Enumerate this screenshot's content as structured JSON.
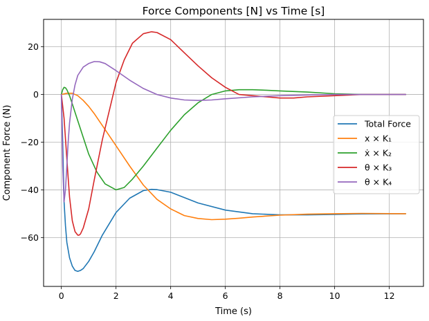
{
  "chart_data": {
    "type": "line",
    "title": "Force Components [N] vs Time [s]",
    "xlabel": "Time (s)",
    "ylabel": "Component Force (N)",
    "xlim": [
      -0.65,
      13.25
    ],
    "ylim": [
      -80.5,
      31.5
    ],
    "xticks": [
      0,
      2,
      4,
      6,
      8,
      10,
      12
    ],
    "yticks": [
      -60,
      -40,
      -20,
      0,
      20
    ],
    "xtick_labels": [
      "0",
      "2",
      "4",
      "6",
      "8",
      "10",
      "12"
    ],
    "ytick_labels": [
      "−60",
      "−40",
      "−20",
      "0",
      "20"
    ],
    "grid": true,
    "legend_position": "center-right",
    "series": [
      {
        "name": "Total Force",
        "color": "#1f77b4",
        "x": [
          0,
          0.05,
          0.1,
          0.15,
          0.2,
          0.3,
          0.4,
          0.5,
          0.6,
          0.7,
          0.8,
          1.0,
          1.2,
          1.5,
          2.0,
          2.5,
          3.0,
          3.3,
          3.5,
          4.0,
          5.0,
          6.0,
          7.0,
          8.0,
          9.0,
          10.0,
          11.0,
          12.6
        ],
        "y": [
          0,
          -20,
          -45,
          -55,
          -62,
          -68.5,
          -72,
          -73.8,
          -74.2,
          -73.8,
          -73,
          -70,
          -66,
          -59,
          -49.5,
          -43.5,
          -40.3,
          -39.8,
          -39.9,
          -41,
          -45.5,
          -48.5,
          -50,
          -50.5,
          -50.5,
          -50.3,
          -50.1,
          -50
        ]
      },
      {
        "name": "x × K₁",
        "color": "#ff7f0e",
        "x": [
          0,
          0.2,
          0.4,
          0.6,
          0.8,
          1.0,
          1.2,
          1.5,
          2.0,
          2.5,
          3.0,
          3.5,
          4.0,
          4.5,
          5.0,
          5.5,
          6.0,
          6.5,
          7.0,
          8.0,
          9.0,
          10.0,
          11.0,
          12.6
        ],
        "y": [
          0,
          0.5,
          0.5,
          -0.5,
          -2.5,
          -5,
          -8,
          -13,
          -21.5,
          -30,
          -38,
          -44,
          -48,
          -50.8,
          -52,
          -52.5,
          -52.3,
          -51.9,
          -51.4,
          -50.6,
          -50.2,
          -50,
          -49.9,
          -50
        ]
      },
      {
        "name": "ẋ × K₂",
        "color": "#2ca02c",
        "x": [
          0,
          0.05,
          0.1,
          0.15,
          0.2,
          0.3,
          0.4,
          0.6,
          0.8,
          1.0,
          1.3,
          1.6,
          2.0,
          2.3,
          2.6,
          3.0,
          3.5,
          4.0,
          4.5,
          5.0,
          5.5,
          6.0,
          6.5,
          7.0,
          7.5,
          8.0,
          9.0,
          10.0,
          11.0,
          12.6
        ],
        "y": [
          0,
          2,
          3,
          2.8,
          2,
          -0.5,
          -4,
          -11,
          -18,
          -25,
          -32.5,
          -37.5,
          -40,
          -39,
          -35.5,
          -30,
          -22.5,
          -15,
          -8.5,
          -3.5,
          0,
          1.5,
          2,
          2,
          1.8,
          1.5,
          1,
          0.3,
          0,
          0
        ]
      },
      {
        "name": "θ × K₃",
        "color": "#d62728",
        "x": [
          0,
          0.1,
          0.2,
          0.3,
          0.4,
          0.5,
          0.6,
          0.65,
          0.7,
          0.8,
          1.0,
          1.2,
          1.5,
          2.0,
          2.3,
          2.6,
          3.0,
          3.3,
          3.5,
          4.0,
          4.5,
          5.0,
          5.5,
          6.0,
          6.5,
          7.0,
          7.5,
          8.0,
          8.5,
          9.0,
          10.0,
          11.0,
          12.6
        ],
        "y": [
          0,
          -10,
          -27,
          -43,
          -53,
          -57.5,
          -59,
          -59,
          -58.5,
          -56,
          -48,
          -36,
          -19,
          5,
          14.5,
          21.5,
          25.5,
          26.3,
          26,
          23,
          17.5,
          12,
          7,
          3,
          0,
          -0.5,
          -1,
          -1.5,
          -1.5,
          -1,
          -0.5,
          0,
          0
        ]
      },
      {
        "name": "θ × K₄",
        "color": "#9467bd",
        "x": [
          0,
          0.05,
          0.1,
          0.15,
          0.2,
          0.25,
          0.3,
          0.4,
          0.5,
          0.6,
          0.8,
          1.0,
          1.2,
          1.4,
          1.6,
          2.0,
          2.5,
          3.0,
          3.5,
          4.0,
          4.5,
          5.0,
          5.5,
          6.0,
          7.0,
          8.0,
          9.0,
          10.0,
          11.0,
          12.6
        ],
        "y": [
          0,
          -30,
          -45,
          -40,
          -30,
          -20,
          -12,
          -2,
          4,
          8,
          11.5,
          13,
          13.8,
          13.7,
          13,
          10,
          6,
          2.5,
          0,
          -1.5,
          -2.3,
          -2.5,
          -2.3,
          -1.8,
          -1,
          -0.5,
          -0.2,
          0,
          0,
          0
        ]
      }
    ]
  }
}
